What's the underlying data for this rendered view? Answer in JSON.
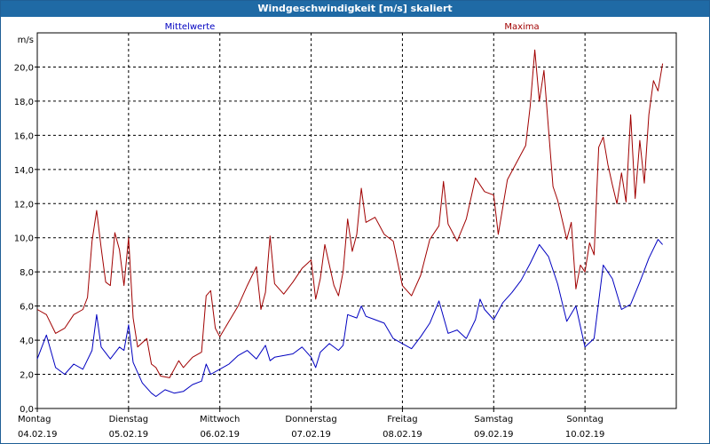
{
  "window": {
    "title": "Windgeschwindigkeit [m/s] skaliert"
  },
  "chart_data": {
    "type": "line",
    "title": "Windgeschwindigkeit [m/s] skaliert",
    "ylabel": "m/s",
    "xlabel": "",
    "ylim": [
      0,
      22
    ],
    "xlim": [
      0,
      7
    ],
    "yticks": [
      0,
      2,
      4,
      6,
      8,
      10,
      12,
      14,
      16,
      18,
      20
    ],
    "ytick_labels": [
      "0,0",
      "2,0",
      "4,0",
      "6,0",
      "8,0",
      "10,0",
      "12,0",
      "14,0",
      "16,0",
      "18,0",
      "20,0"
    ],
    "grid": true,
    "legend_position": "top",
    "days": [
      {
        "day": "Montag",
        "date": "04.02.19"
      },
      {
        "day": "Dienstag",
        "date": "05.02.19"
      },
      {
        "day": "Mittwoch",
        "date": "06.02.19"
      },
      {
        "day": "Donnerstag",
        "date": "07.02.19"
      },
      {
        "day": "Freitag",
        "date": "08.02.19"
      },
      {
        "day": "Samstag",
        "date": "09.02.19"
      },
      {
        "day": "Sonntag",
        "date": "10.02.19"
      }
    ],
    "series": [
      {
        "name": "Mittelwerte",
        "color": "#0000c0",
        "points": [
          [
            0,
            2.9
          ],
          [
            0.1,
            4.3
          ],
          [
            0.2,
            2.4
          ],
          [
            0.3,
            2.0
          ],
          [
            0.4,
            2.6
          ],
          [
            0.5,
            2.3
          ],
          [
            0.6,
            3.4
          ],
          [
            0.65,
            5.5
          ],
          [
            0.7,
            3.6
          ],
          [
            0.8,
            2.9
          ],
          [
            0.9,
            3.6
          ],
          [
            0.95,
            3.4
          ],
          [
            1.0,
            4.9
          ],
          [
            1.05,
            2.7
          ],
          [
            1.15,
            1.5
          ],
          [
            1.25,
            0.9
          ],
          [
            1.3,
            0.7
          ],
          [
            1.4,
            1.1
          ],
          [
            1.5,
            0.9
          ],
          [
            1.6,
            1.0
          ],
          [
            1.7,
            1.4
          ],
          [
            1.8,
            1.6
          ],
          [
            1.85,
            2.6
          ],
          [
            1.9,
            2.0
          ],
          [
            2.0,
            2.3
          ],
          [
            2.1,
            2.6
          ],
          [
            2.2,
            3.1
          ],
          [
            2.3,
            3.4
          ],
          [
            2.4,
            2.9
          ],
          [
            2.5,
            3.7
          ],
          [
            2.55,
            2.8
          ],
          [
            2.6,
            3.0
          ],
          [
            2.7,
            3.1
          ],
          [
            2.8,
            3.2
          ],
          [
            2.9,
            3.6
          ],
          [
            3.0,
            3.0
          ],
          [
            3.05,
            2.4
          ],
          [
            3.1,
            3.3
          ],
          [
            3.2,
            3.8
          ],
          [
            3.3,
            3.4
          ],
          [
            3.35,
            3.7
          ],
          [
            3.4,
            5.5
          ],
          [
            3.5,
            5.3
          ],
          [
            3.55,
            6.0
          ],
          [
            3.6,
            5.4
          ],
          [
            3.7,
            5.2
          ],
          [
            3.8,
            5.0
          ],
          [
            3.9,
            4.1
          ],
          [
            4.0,
            3.8
          ],
          [
            4.1,
            3.5
          ],
          [
            4.2,
            4.2
          ],
          [
            4.3,
            5.0
          ],
          [
            4.4,
            6.3
          ],
          [
            4.5,
            4.4
          ],
          [
            4.6,
            4.6
          ],
          [
            4.7,
            4.1
          ],
          [
            4.8,
            5.2
          ],
          [
            4.85,
            6.4
          ],
          [
            4.9,
            5.8
          ],
          [
            5.0,
            5.2
          ],
          [
            5.1,
            6.2
          ],
          [
            5.2,
            6.8
          ],
          [
            5.3,
            7.5
          ],
          [
            5.4,
            8.5
          ],
          [
            5.5,
            9.6
          ],
          [
            5.6,
            8.9
          ],
          [
            5.7,
            7.3
          ],
          [
            5.8,
            5.1
          ],
          [
            5.9,
            6.0
          ],
          [
            6.0,
            3.6
          ],
          [
            6.1,
            4.1
          ],
          [
            6.2,
            8.4
          ],
          [
            6.3,
            7.6
          ],
          [
            6.4,
            5.8
          ],
          [
            6.5,
            6.1
          ],
          [
            6.6,
            7.4
          ],
          [
            6.7,
            8.8
          ],
          [
            6.8,
            9.9
          ],
          [
            6.85,
            9.6
          ]
        ]
      },
      {
        "name": "Maxima",
        "color": "#a00000",
        "points": [
          [
            0,
            5.8
          ],
          [
            0.1,
            5.5
          ],
          [
            0.2,
            4.4
          ],
          [
            0.3,
            4.7
          ],
          [
            0.4,
            5.5
          ],
          [
            0.5,
            5.8
          ],
          [
            0.55,
            6.5
          ],
          [
            0.6,
            9.8
          ],
          [
            0.65,
            11.6
          ],
          [
            0.7,
            9.4
          ],
          [
            0.75,
            7.4
          ],
          [
            0.8,
            7.2
          ],
          [
            0.85,
            10.3
          ],
          [
            0.9,
            9.3
          ],
          [
            0.95,
            7.2
          ],
          [
            1.0,
            10.0
          ],
          [
            1.05,
            5.3
          ],
          [
            1.1,
            3.6
          ],
          [
            1.2,
            4.1
          ],
          [
            1.25,
            2.6
          ],
          [
            1.3,
            2.4
          ],
          [
            1.35,
            1.9
          ],
          [
            1.45,
            1.8
          ],
          [
            1.55,
            2.8
          ],
          [
            1.6,
            2.4
          ],
          [
            1.7,
            3.0
          ],
          [
            1.8,
            3.3
          ],
          [
            1.85,
            6.6
          ],
          [
            1.9,
            6.9
          ],
          [
            1.95,
            4.7
          ],
          [
            2.0,
            4.2
          ],
          [
            2.1,
            5.1
          ],
          [
            2.2,
            6.0
          ],
          [
            2.3,
            7.2
          ],
          [
            2.4,
            8.3
          ],
          [
            2.45,
            5.8
          ],
          [
            2.5,
            6.8
          ],
          [
            2.55,
            10.1
          ],
          [
            2.6,
            7.3
          ],
          [
            2.7,
            6.7
          ],
          [
            2.8,
            7.4
          ],
          [
            2.9,
            8.2
          ],
          [
            3.0,
            8.7
          ],
          [
            3.05,
            6.4
          ],
          [
            3.1,
            7.6
          ],
          [
            3.15,
            9.6
          ],
          [
            3.25,
            7.2
          ],
          [
            3.3,
            6.6
          ],
          [
            3.35,
            8.0
          ],
          [
            3.4,
            11.1
          ],
          [
            3.45,
            9.2
          ],
          [
            3.5,
            10.2
          ],
          [
            3.55,
            12.9
          ],
          [
            3.6,
            10.9
          ],
          [
            3.7,
            11.2
          ],
          [
            3.8,
            10.2
          ],
          [
            3.9,
            9.8
          ],
          [
            3.95,
            8.5
          ],
          [
            4.0,
            7.2
          ],
          [
            4.1,
            6.6
          ],
          [
            4.2,
            7.8
          ],
          [
            4.3,
            9.9
          ],
          [
            4.4,
            10.7
          ],
          [
            4.45,
            13.3
          ],
          [
            4.5,
            10.8
          ],
          [
            4.6,
            9.8
          ],
          [
            4.7,
            11.1
          ],
          [
            4.8,
            13.5
          ],
          [
            4.9,
            12.7
          ],
          [
            5.0,
            12.5
          ],
          [
            5.05,
            10.2
          ],
          [
            5.15,
            13.4
          ],
          [
            5.25,
            14.4
          ],
          [
            5.35,
            15.4
          ],
          [
            5.4,
            17.7
          ],
          [
            5.45,
            21.0
          ],
          [
            5.5,
            18.0
          ],
          [
            5.55,
            19.8
          ],
          [
            5.6,
            16.4
          ],
          [
            5.65,
            13.0
          ],
          [
            5.7,
            12.2
          ],
          [
            5.8,
            9.9
          ],
          [
            5.85,
            10.9
          ],
          [
            5.9,
            7.0
          ],
          [
            5.95,
            8.4
          ],
          [
            6.0,
            8.0
          ],
          [
            6.05,
            9.7
          ],
          [
            6.1,
            9.0
          ],
          [
            6.15,
            15.3
          ],
          [
            6.2,
            15.9
          ],
          [
            6.25,
            14.3
          ],
          [
            6.3,
            13.1
          ],
          [
            6.35,
            12.0
          ],
          [
            6.4,
            13.8
          ],
          [
            6.45,
            12.1
          ],
          [
            6.5,
            17.2
          ],
          [
            6.55,
            12.3
          ],
          [
            6.6,
            15.7
          ],
          [
            6.65,
            13.2
          ],
          [
            6.7,
            17.2
          ],
          [
            6.75,
            19.2
          ],
          [
            6.8,
            18.6
          ],
          [
            6.85,
            20.2
          ]
        ]
      }
    ]
  }
}
